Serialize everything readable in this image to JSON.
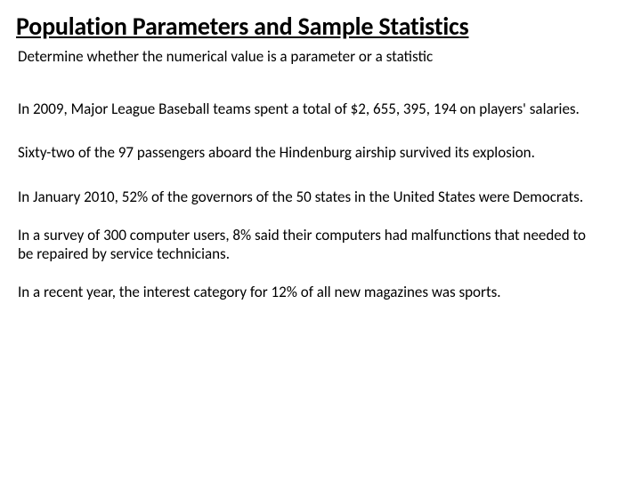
{
  "title": "Population Parameters  and Sample Statistics",
  "subtitle": "Determine whether the numerical value is a parameter or a statistic",
  "paragraphs": [
    "In 2009, Major League Baseball teams spent a total of $2, 655, 395, 194 on players' salaries.",
    "Sixty-two of the 97 passengers aboard the Hindenburg airship survived its explosion.",
    "In January 2010, 52% of the governors of the 50 states in the United States were Democrats.",
    "In a survey of 300 computer users, 8% said their computers had malfunctions that needed to be repaired by service technicians.",
    "In a recent year, the interest category for 12% of all new magazines was sports."
  ],
  "colors": {
    "background": "#ffffff",
    "text": "#000000"
  },
  "typography": {
    "title_fontsize": 28,
    "title_weight": 700,
    "body_fontsize": 17,
    "body_weight": 400,
    "font_family": "Calibri"
  }
}
